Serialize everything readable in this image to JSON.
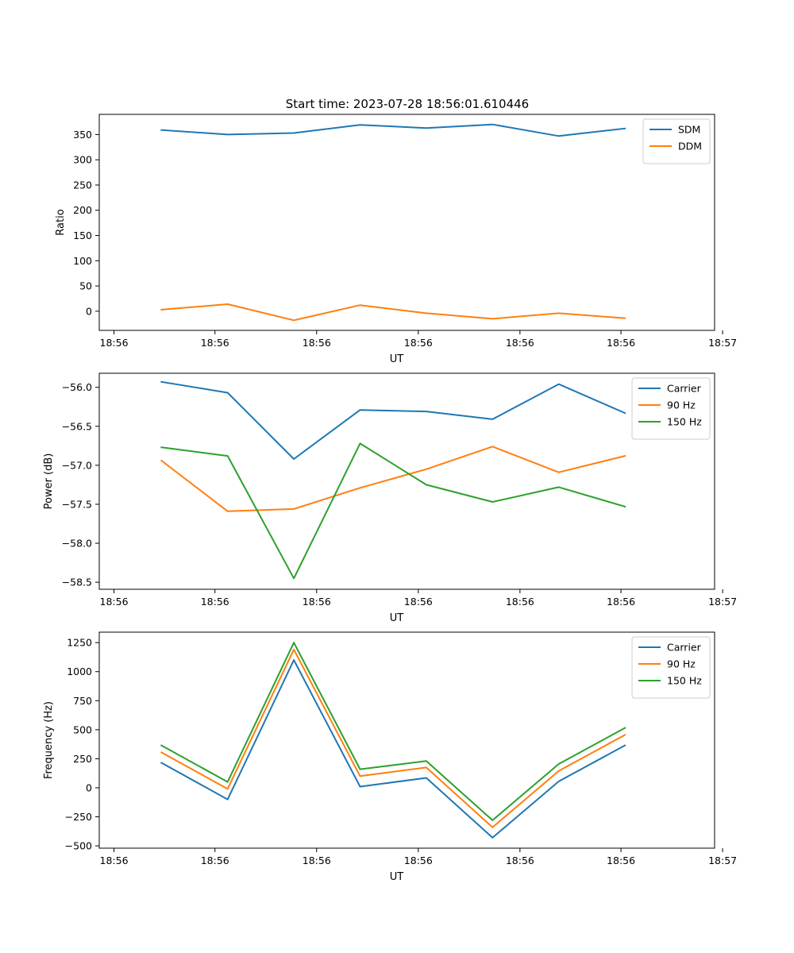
{
  "figure_title": "Start time: 2023-07-28 18:56:01.610446",
  "colors": {
    "blue": "#1f77b4",
    "orange": "#ff7f0e",
    "green": "#2ca02c"
  },
  "chart_data": [
    {
      "type": "line",
      "title": "Start time: 2023-07-28 18:56:01.610446",
      "xlabel": "UT",
      "ylabel": "Ratio",
      "xlim": [
        -0.6,
        8.6
      ],
      "ylim": [
        -38,
        390
      ],
      "x_tick_values": [
        -0.38,
        1.13,
        2.65,
        4.17,
        5.69,
        7.2,
        8.72
      ],
      "x_tick_labels": [
        "18:56",
        "18:56",
        "18:56",
        "18:56",
        "18:56",
        "18:56",
        "18:57"
      ],
      "y_ticks": [
        0,
        50,
        100,
        150,
        200,
        250,
        300,
        350
      ],
      "y_tick_labels": [
        "0",
        "50",
        "100",
        "150",
        "200",
        "250",
        "300",
        "350"
      ],
      "legend_position": "top-right",
      "x": [
        0.33,
        1.32,
        2.31,
        3.3,
        4.29,
        5.28,
        6.27,
        7.26
      ],
      "series": [
        {
          "name": "SDM",
          "color": "#1f77b4",
          "values": [
            359,
            350,
            353,
            369,
            363,
            370,
            347,
            362
          ]
        },
        {
          "name": "DDM",
          "color": "#ff7f0e",
          "values": [
            3,
            14,
            -18,
            12,
            -4,
            -15,
            -4,
            -14
          ]
        }
      ]
    },
    {
      "type": "line",
      "title": "",
      "xlabel": "UT",
      "ylabel": "Power (dB)",
      "xlim": [
        -0.6,
        8.6
      ],
      "ylim": [
        -58.59,
        -55.82
      ],
      "x_tick_values": [
        -0.38,
        1.13,
        2.65,
        4.17,
        5.69,
        7.2,
        8.72
      ],
      "x_tick_labels": [
        "18:56",
        "18:56",
        "18:56",
        "18:56",
        "18:56",
        "18:56",
        "18:57"
      ],
      "y_ticks": [
        -58.5,
        -58.0,
        -57.5,
        -57.0,
        -56.5,
        -56.0
      ],
      "y_tick_labels": [
        "−58.5",
        "−58.0",
        "−57.5",
        "−57.0",
        "−56.5",
        "−56.0"
      ],
      "legend_position": "top-right",
      "x": [
        0.33,
        1.32,
        2.31,
        3.3,
        4.29,
        5.28,
        6.27,
        7.26
      ],
      "series": [
        {
          "name": "Carrier",
          "color": "#1f77b4",
          "values": [
            -55.93,
            -56.07,
            -56.92,
            -56.29,
            -56.31,
            -56.41,
            -55.96,
            -56.33
          ]
        },
        {
          "name": "90 Hz",
          "color": "#ff7f0e",
          "values": [
            -56.94,
            -57.59,
            -57.56,
            -57.29,
            -57.05,
            -56.76,
            -57.09,
            -56.88
          ]
        },
        {
          "name": "150 Hz",
          "color": "#2ca02c",
          "values": [
            -56.77,
            -56.88,
            -58.45,
            -56.72,
            -57.25,
            -57.47,
            -57.28,
            -57.53
          ]
        }
      ]
    },
    {
      "type": "line",
      "title": "",
      "xlabel": "UT",
      "ylabel": "Frequency (Hz)",
      "xlim": [
        -0.6,
        8.6
      ],
      "ylim": [
        -520,
        1340
      ],
      "x_tick_values": [
        -0.38,
        1.13,
        2.65,
        4.17,
        5.69,
        7.2,
        8.72
      ],
      "x_tick_labels": [
        "18:56",
        "18:56",
        "18:56",
        "18:56",
        "18:56",
        "18:56",
        "18:57"
      ],
      "y_ticks": [
        -500,
        -250,
        0,
        250,
        500,
        750,
        1000,
        1250
      ],
      "y_tick_labels": [
        "−500",
        "−250",
        "0",
        "250",
        "500",
        "750",
        "1000",
        "1250"
      ],
      "legend_position": "top-right",
      "x": [
        0.33,
        1.32,
        2.31,
        3.3,
        4.29,
        5.28,
        6.27,
        7.26
      ],
      "series": [
        {
          "name": "Carrier",
          "color": "#1f77b4",
          "values": [
            215,
            -100,
            1100,
            10,
            85,
            -430,
            55,
            365
          ]
        },
        {
          "name": "90 Hz",
          "color": "#ff7f0e",
          "values": [
            305,
            -10,
            1190,
            100,
            175,
            -340,
            145,
            455
          ]
        },
        {
          "name": "150 Hz",
          "color": "#2ca02c",
          "values": [
            365,
            50,
            1250,
            160,
            230,
            -280,
            205,
            515
          ]
        }
      ]
    }
  ]
}
